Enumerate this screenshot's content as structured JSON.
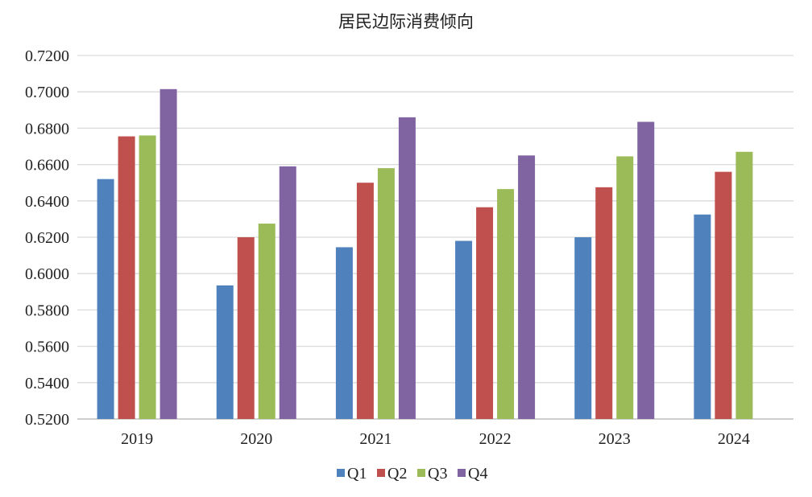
{
  "chart_data": {
    "type": "bar",
    "title": "居民边际消费倾向",
    "xlabel": "",
    "ylabel": "",
    "categories": [
      "2019",
      "2020",
      "2021",
      "2022",
      "2023",
      "2024"
    ],
    "series": [
      {
        "name": "Q1",
        "color": "#4f81bd",
        "values": [
          0.652,
          0.5935,
          0.6145,
          0.618,
          0.62,
          0.6325
        ]
      },
      {
        "name": "Q2",
        "color": "#c0504d",
        "values": [
          0.6755,
          0.62,
          0.65,
          0.6365,
          0.6475,
          0.656
        ]
      },
      {
        "name": "Q3",
        "color": "#9bbb59",
        "values": [
          0.676,
          0.6275,
          0.658,
          0.6465,
          0.6645,
          0.667
        ]
      },
      {
        "name": "Q4",
        "color": "#8064a2",
        "values": [
          0.7015,
          0.659,
          0.686,
          0.665,
          0.6835,
          null
        ]
      }
    ],
    "ylim": [
      0.52,
      0.72
    ],
    "yticks": [
      "0.5200",
      "0.5400",
      "0.5600",
      "0.5800",
      "0.6000",
      "0.6200",
      "0.6400",
      "0.6600",
      "0.6800",
      "0.7000",
      "0.7200"
    ],
    "grid": true,
    "gridline_color": "#d9d9d9",
    "axis_color": "#bfbfbf",
    "legend_position": "bottom"
  }
}
